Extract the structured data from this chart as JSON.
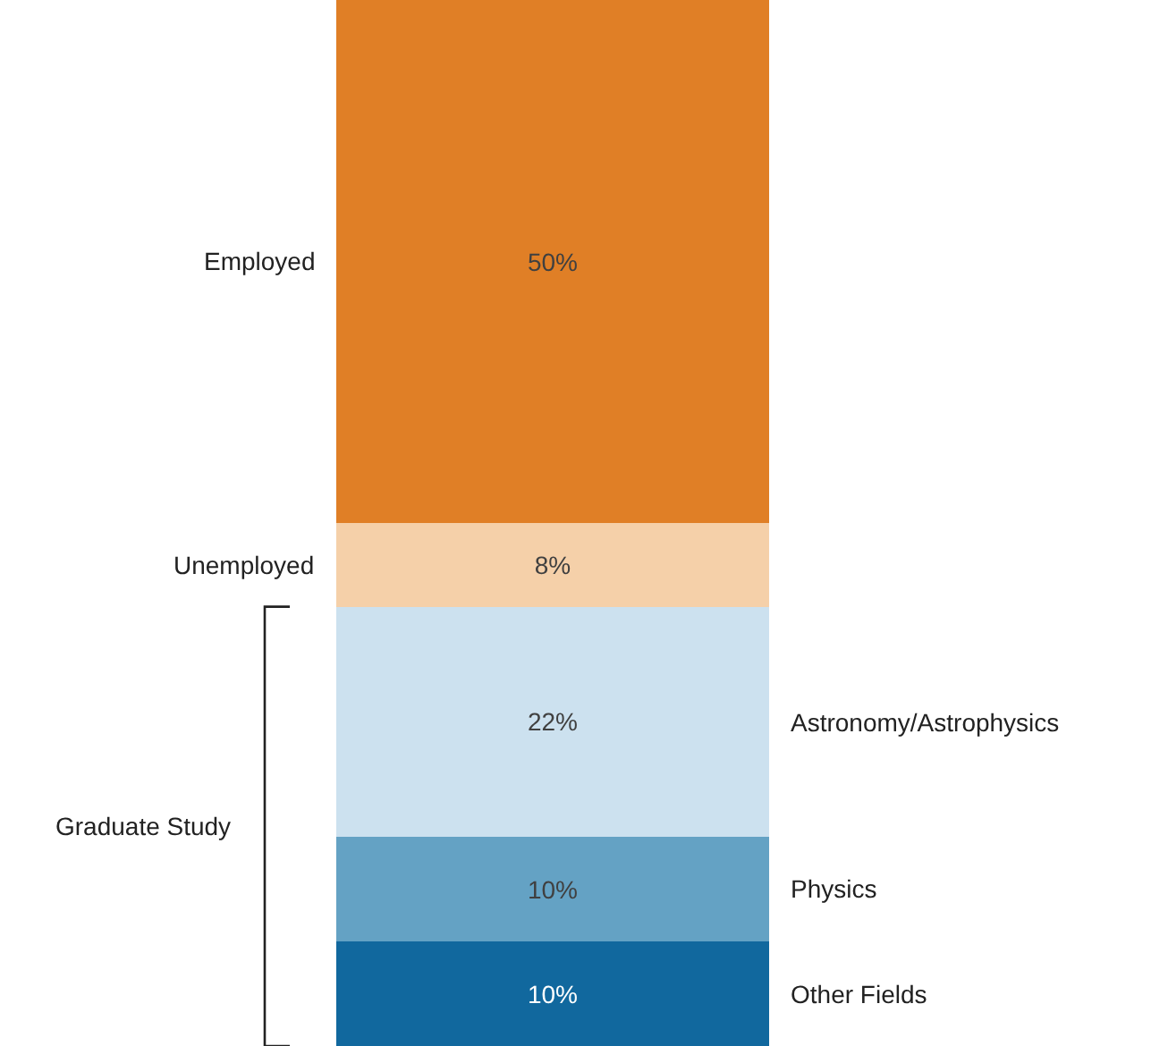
{
  "chart_data": {
    "type": "bar",
    "stacked": true,
    "categories": [
      null
    ],
    "ylim": [
      0,
      100
    ],
    "legend": false,
    "series": [
      {
        "name": "Other Fields",
        "color": "#11689e",
        "values": [
          10
        ],
        "value_labels": [
          "10%"
        ]
      },
      {
        "name": "Physics",
        "color": "#64a2c4",
        "values": [
          10
        ],
        "value_labels": [
          "10%"
        ]
      },
      {
        "name": "Astronomy/Astrophysics",
        "color": "#cce1ef",
        "values": [
          22
        ],
        "value_labels": [
          "22%"
        ]
      },
      {
        "name": "Unemployed",
        "color": "#f5d0a9",
        "values": [
          8
        ],
        "value_labels": [
          "8%"
        ]
      },
      {
        "name": "Employed",
        "color": "#e07f26",
        "values": [
          50
        ],
        "value_labels": [
          "50%"
        ]
      }
    ],
    "annotations": [
      "Graduate Study"
    ]
  }
}
